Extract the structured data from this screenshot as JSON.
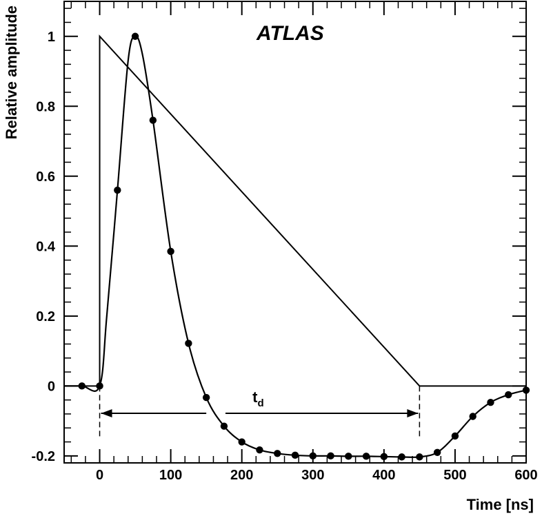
{
  "chart_data": {
    "type": "line",
    "xlabel": "Time [ns]",
    "ylabel": "Relative amplitude",
    "annotation": "ATLAS",
    "td_label": "t",
    "td_subscript": "d",
    "xlim": [
      -50,
      600
    ],
    "ylim": [
      -0.22,
      1.1
    ],
    "x_ticks": [
      0,
      100,
      200,
      300,
      400,
      500,
      600
    ],
    "x_tick_labels": [
      "0",
      "100",
      "200",
      "300",
      "400",
      "500",
      "600"
    ],
    "y_ticks": [
      -0.2,
      0,
      0.2,
      0.4,
      0.6,
      0.8,
      1
    ],
    "y_tick_labels": [
      "-0.2",
      "0",
      "0.2",
      "0.4",
      "0.6",
      "0.8",
      "1"
    ],
    "grid": false,
    "td_range": [
      0,
      450
    ],
    "series": [
      {
        "style": "line",
        "x": [
          -50,
          0,
          0,
          450,
          600
        ],
        "y": [
          0,
          0,
          1,
          0,
          0
        ]
      },
      {
        "style": "curve",
        "x": [
          -50,
          -25,
          0,
          10,
          25,
          40,
          50,
          60,
          75,
          100,
          125,
          150,
          175,
          200,
          225,
          250,
          275,
          300,
          325,
          350,
          375,
          400,
          425,
          450,
          475,
          500,
          525,
          550,
          575,
          600
        ],
        "y": [
          0,
          0,
          0,
          0.2,
          0.56,
          0.93,
          1.0,
          0.95,
          0.76,
          0.385,
          0.122,
          -0.033,
          -0.115,
          -0.16,
          -0.183,
          -0.193,
          -0.198,
          -0.2,
          -0.2,
          -0.201,
          -0.201,
          -0.202,
          -0.203,
          -0.203,
          -0.19,
          -0.143,
          -0.087,
          -0.047,
          -0.025,
          -0.012
        ]
      },
      {
        "style": "markers",
        "x": [
          -25,
          0,
          25,
          50,
          75,
          100,
          125,
          150,
          175,
          200,
          225,
          250,
          275,
          300,
          325,
          350,
          375,
          400,
          425,
          450,
          475,
          500,
          525,
          550,
          575,
          600
        ],
        "y": [
          0,
          0,
          0.56,
          1.0,
          0.76,
          0.385,
          0.122,
          -0.033,
          -0.115,
          -0.16,
          -0.183,
          -0.193,
          -0.198,
          -0.2,
          -0.2,
          -0.201,
          -0.201,
          -0.202,
          -0.203,
          -0.203,
          -0.19,
          -0.143,
          -0.087,
          -0.047,
          -0.025,
          -0.012
        ]
      }
    ]
  }
}
